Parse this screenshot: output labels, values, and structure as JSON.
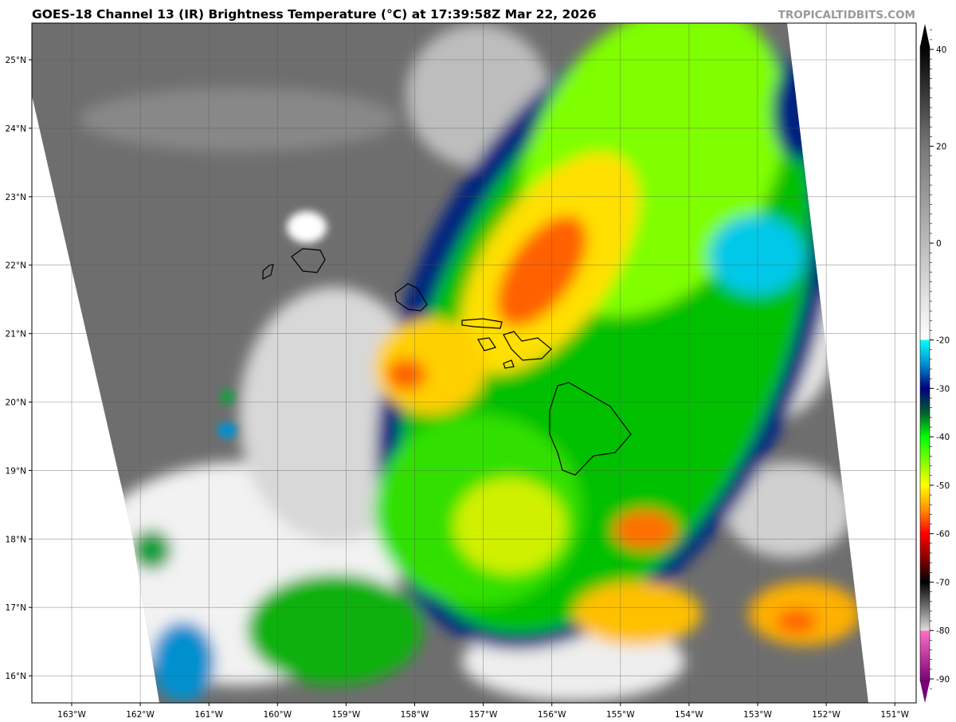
{
  "header": {
    "title": "GOES-18 Channel 13 (IR) Brightness Temperature (°C) at 17:39:58Z Mar 22, 2026",
    "watermark": "TROPICALTIDBITS.COM"
  },
  "map": {
    "longitude_labels": [
      "163°W",
      "162°W",
      "161°W",
      "160°W",
      "159°W",
      "158°W",
      "157°W",
      "156°W",
      "155°W",
      "154°W",
      "153°W",
      "152°W",
      "151°W"
    ],
    "latitude_labels": [
      "25°N",
      "24°N",
      "23°N",
      "22°N",
      "21°N",
      "20°N",
      "19°N",
      "18°N",
      "17°N",
      "16°N"
    ],
    "extent": {
      "lon": [
        -163.6,
        -150.7
      ],
      "lat": [
        15.6,
        25.5
      ]
    },
    "features": [
      "Hawaiian Islands coastlines"
    ]
  },
  "colorbar": {
    "unit": "°C",
    "range": [
      -95,
      46
    ],
    "tick_labels": [
      "40",
      "20",
      "0",
      "-20",
      "-30",
      "-40",
      "-50",
      "-60",
      "-70",
      "-80",
      "-90"
    ],
    "tick_values": [
      40,
      20,
      0,
      -20,
      -30,
      -40,
      -50,
      -60,
      -70,
      -80,
      -90
    ],
    "color_stops": [
      {
        "value": 46,
        "color": "#000000"
      },
      {
        "value": 20,
        "color": "#777777"
      },
      {
        "value": -20,
        "color": "#ffffff"
      },
      {
        "value": -20.01,
        "color": "#00ffff"
      },
      {
        "value": -25,
        "color": "#0090d0"
      },
      {
        "value": -30,
        "color": "#00007f"
      },
      {
        "value": -35,
        "color": "#006030"
      },
      {
        "value": -40,
        "color": "#00ff00"
      },
      {
        "value": -50,
        "color": "#ffff00"
      },
      {
        "value": -55,
        "color": "#ff9000"
      },
      {
        "value": -60,
        "color": "#ff0000"
      },
      {
        "value": -65,
        "color": "#8b0000"
      },
      {
        "value": -70,
        "color": "#000000"
      },
      {
        "value": -80,
        "color": "#dddddd"
      },
      {
        "value": -80.01,
        "color": "#ff70c8"
      },
      {
        "value": -95,
        "color": "#780078"
      }
    ]
  }
}
